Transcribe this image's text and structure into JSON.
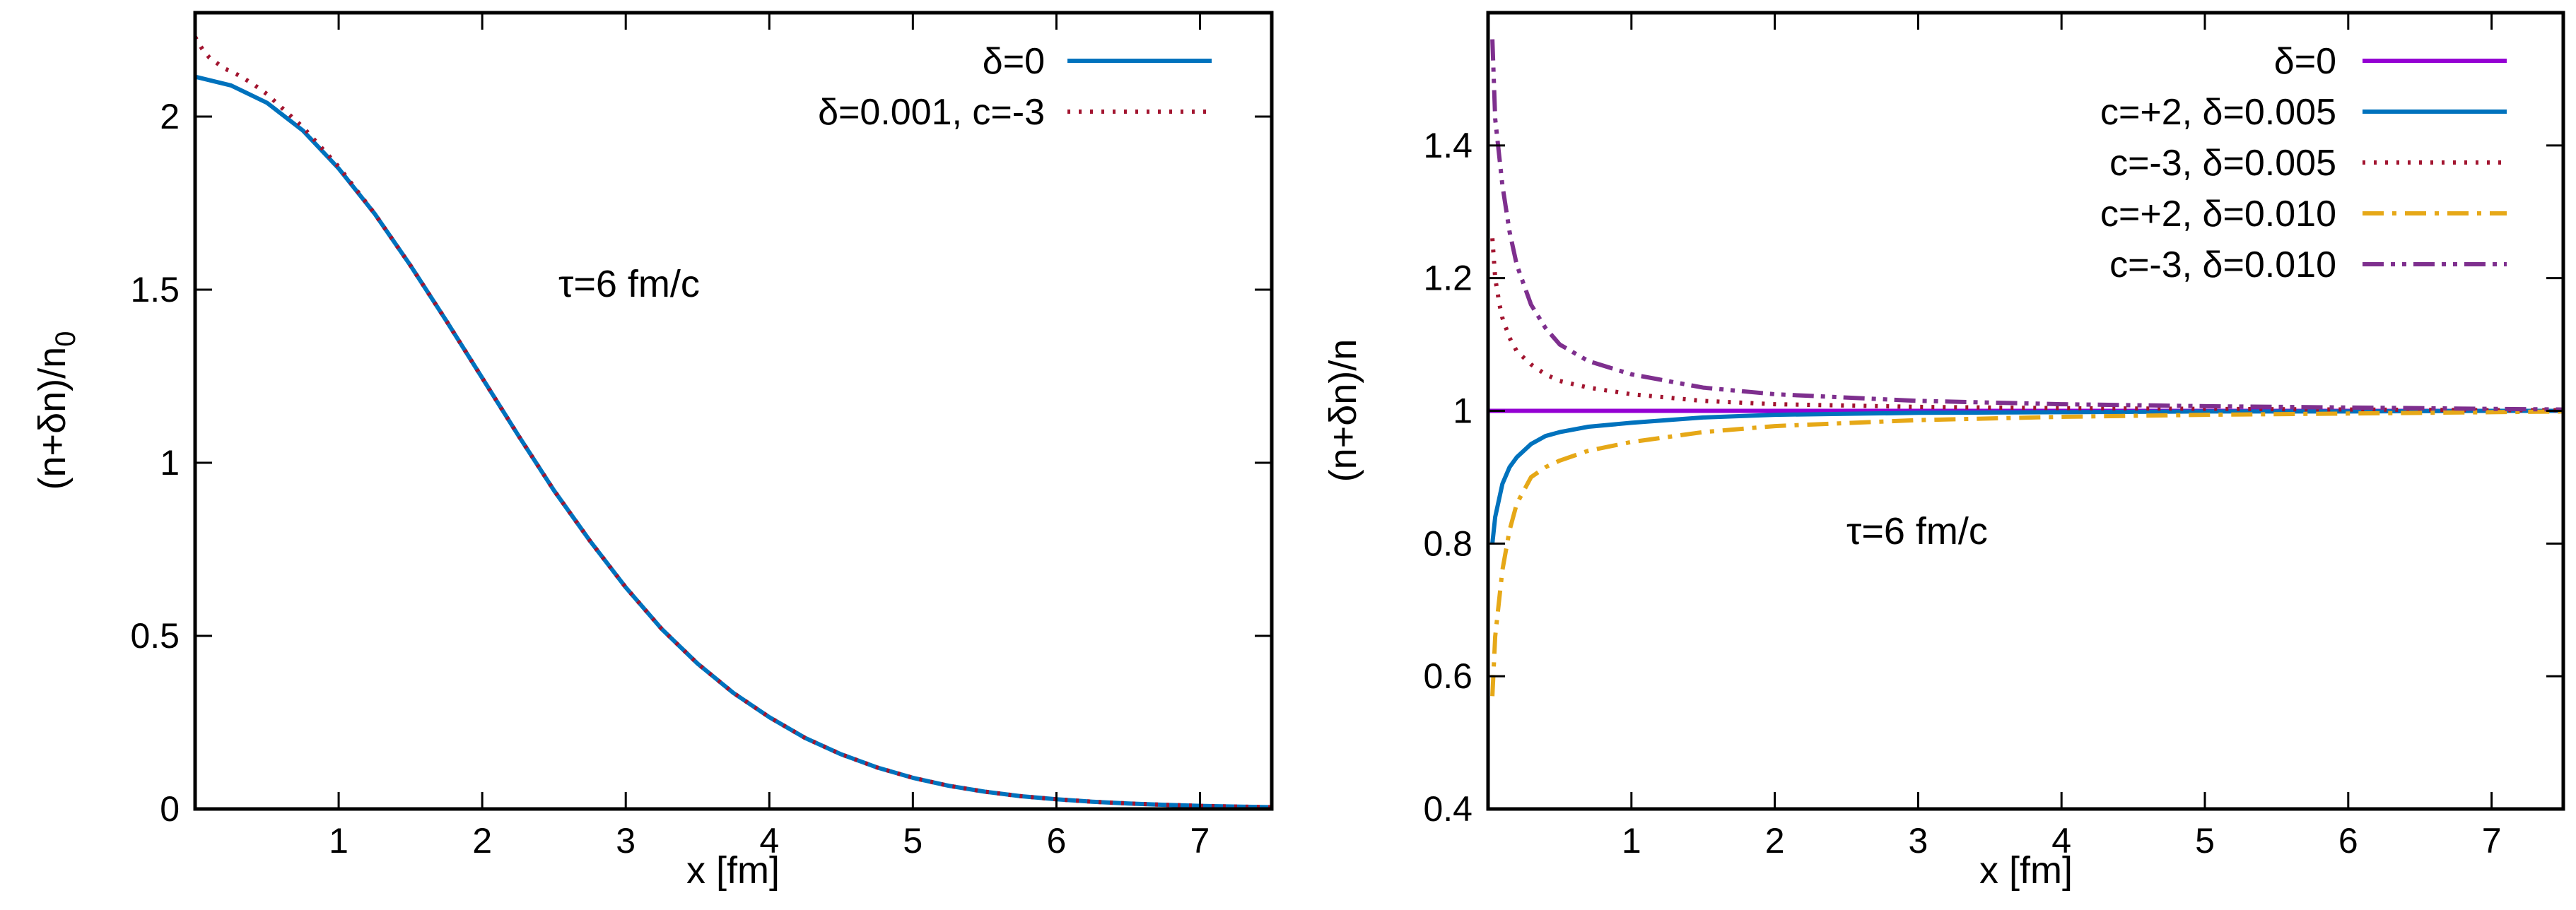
{
  "chart_data": [
    {
      "type": "line",
      "xlabel": "x [fm]",
      "ylabel": "(n+δn)/n",
      "ylabel_sub": "0",
      "xlim": [
        0.0,
        7.5
      ],
      "ylim": [
        0,
        2.3
      ],
      "xticks": [
        1,
        2,
        3,
        4,
        5,
        6,
        7
      ],
      "yticks": [
        0,
        0.5,
        1,
        1.5,
        2
      ],
      "ytick_labels": [
        "0",
        "0.5",
        "1",
        "1.5",
        "2"
      ],
      "xtick_labels": [
        "1",
        "2",
        "3",
        "4",
        "5",
        "6",
        "7"
      ],
      "annotation": "τ=6 fm/c",
      "legend_position": "top-right",
      "series": [
        {
          "name": "δ=0",
          "color": "#0072bd",
          "dash": "solid",
          "x": [
            0.0,
            0.25,
            0.5,
            0.75,
            1.0,
            1.25,
            1.5,
            1.75,
            2.0,
            2.25,
            2.5,
            2.75,
            3.0,
            3.25,
            3.5,
            3.75,
            4.0,
            4.25,
            4.5,
            4.75,
            5.0,
            5.25,
            5.5,
            5.75,
            6.0,
            6.25,
            6.5,
            6.75,
            7.0,
            7.25,
            7.5
          ],
          "values": [
            2.115,
            2.09,
            2.04,
            1.96,
            1.85,
            1.72,
            1.57,
            1.41,
            1.245,
            1.08,
            0.92,
            0.775,
            0.64,
            0.52,
            0.42,
            0.335,
            0.265,
            0.205,
            0.158,
            0.12,
            0.09,
            0.067,
            0.05,
            0.037,
            0.028,
            0.021,
            0.016,
            0.012,
            0.009,
            0.007,
            0.005
          ]
        },
        {
          "name": "δ=0.001, c=-3",
          "color": "#a2142f",
          "dash": "dotted",
          "x": [
            0.0,
            0.05,
            0.1,
            0.15,
            0.2,
            0.3,
            0.4,
            0.5,
            0.75,
            1.0,
            1.25,
            1.5,
            1.75,
            2.0,
            2.25,
            2.5,
            2.75,
            3.0,
            3.25,
            3.5,
            3.75,
            4.0,
            4.25,
            4.5,
            4.75,
            5.0,
            5.25,
            5.5,
            5.75,
            6.0,
            6.25,
            6.5,
            6.75,
            7.0,
            7.25,
            7.5
          ],
          "values": [
            2.23,
            2.195,
            2.17,
            2.155,
            2.14,
            2.12,
            2.095,
            2.065,
            1.97,
            1.855,
            1.72,
            1.57,
            1.41,
            1.245,
            1.08,
            0.92,
            0.775,
            0.64,
            0.52,
            0.42,
            0.335,
            0.265,
            0.205,
            0.158,
            0.12,
            0.09,
            0.067,
            0.05,
            0.037,
            0.028,
            0.021,
            0.016,
            0.012,
            0.009,
            0.007,
            0.005
          ]
        }
      ]
    },
    {
      "type": "line",
      "xlabel": "x [fm]",
      "ylabel": "(n+δn)/n",
      "xlim": [
        0.0,
        7.5
      ],
      "ylim": [
        0.4,
        1.6
      ],
      "xticks": [
        1,
        2,
        3,
        4,
        5,
        6,
        7
      ],
      "yticks": [
        0.4,
        0.6,
        0.8,
        1.0,
        1.2,
        1.4
      ],
      "ytick_labels": [
        "0.4",
        "0.6",
        "0.8",
        "1",
        "1.2",
        "1.4"
      ],
      "xtick_labels": [
        "1",
        "2",
        "3",
        "4",
        "5",
        "6",
        "7"
      ],
      "annotation": "τ=6 fm/c",
      "legend_position": "top-right",
      "series": [
        {
          "name": "δ=0",
          "color": "#9400d3",
          "dash": "solid",
          "x": [
            0.0,
            7.5
          ],
          "values": [
            1.0,
            1.0
          ]
        },
        {
          "name": "c=+2, δ=0.005",
          "color": "#0072bd",
          "dash": "solid",
          "x": [
            0.03,
            0.05,
            0.08,
            0.1,
            0.15,
            0.2,
            0.3,
            0.4,
            0.5,
            0.7,
            1.0,
            1.5,
            2.0,
            3.0,
            4.0,
            5.0,
            6.0,
            7.0,
            7.5
          ],
          "values": [
            0.8,
            0.84,
            0.87,
            0.89,
            0.915,
            0.93,
            0.95,
            0.962,
            0.968,
            0.976,
            0.982,
            0.99,
            0.994,
            0.997,
            0.998,
            0.999,
            0.999,
            1.0,
            1.0
          ]
        },
        {
          "name": "c=-3, δ=0.005",
          "color": "#a2142f",
          "dash": "dotted",
          "x": [
            0.03,
            0.05,
            0.08,
            0.1,
            0.15,
            0.2,
            0.3,
            0.4,
            0.5,
            0.7,
            1.0,
            1.5,
            2.0,
            3.0,
            4.0,
            5.0,
            6.0,
            7.0,
            7.5
          ],
          "values": [
            1.26,
            1.2,
            1.16,
            1.14,
            1.11,
            1.09,
            1.07,
            1.055,
            1.045,
            1.035,
            1.025,
            1.015,
            1.01,
            1.006,
            1.004,
            1.003,
            1.002,
            1.001,
            1.001
          ]
        },
        {
          "name": "c=+2, δ=0.010",
          "color": "#e6a817",
          "dash": "dashdot",
          "x": [
            0.03,
            0.05,
            0.08,
            0.1,
            0.15,
            0.2,
            0.3,
            0.4,
            0.5,
            0.7,
            1.0,
            1.5,
            2.0,
            3.0,
            4.0,
            5.0,
            6.0,
            7.0,
            7.5
          ],
          "values": [
            0.57,
            0.66,
            0.72,
            0.76,
            0.82,
            0.86,
            0.9,
            0.915,
            0.925,
            0.94,
            0.953,
            0.968,
            0.977,
            0.986,
            0.991,
            0.994,
            0.996,
            0.998,
            0.999
          ]
        },
        {
          "name": "c=-3, δ=0.010",
          "color": "#7e2f8e",
          "dash": "dashdotdot",
          "x": [
            0.03,
            0.05,
            0.08,
            0.1,
            0.15,
            0.2,
            0.3,
            0.4,
            0.5,
            0.7,
            1.0,
            1.5,
            2.0,
            3.0,
            4.0,
            5.0,
            6.0,
            7.0,
            7.5
          ],
          "values": [
            1.56,
            1.44,
            1.38,
            1.34,
            1.27,
            1.22,
            1.16,
            1.125,
            1.1,
            1.075,
            1.055,
            1.035,
            1.025,
            1.015,
            1.01,
            1.007,
            1.005,
            1.003,
            1.002
          ]
        }
      ]
    }
  ]
}
